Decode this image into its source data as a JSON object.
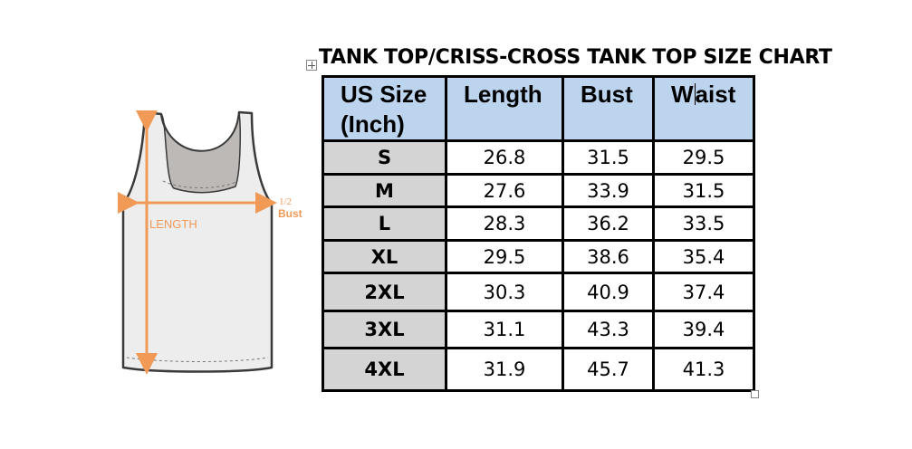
{
  "title": "TANK TOP/CRISS-CROSS TANK TOP SIZE CHART",
  "illustration": {
    "length_label": "LENGTH",
    "bust_fraction": "1/2",
    "bust_label": "Bust",
    "colors": {
      "measure": "#f19a58",
      "body": "#ededed",
      "inner": "#bdb9b7",
      "outline": "#3a3a3a"
    }
  },
  "table": {
    "headers": [
      "US Size\n(Inch)",
      "Length",
      "Bust",
      "Waist"
    ],
    "rows": [
      [
        "S",
        "26.8",
        "31.5",
        "29.5"
      ],
      [
        "M",
        "27.6",
        "33.9",
        "31.5"
      ],
      [
        "L",
        "28.3",
        "36.2",
        "33.5"
      ],
      [
        "XL",
        "29.5",
        "38.6",
        "35.4"
      ],
      [
        "2XL",
        "30.3",
        "40.9",
        "37.4"
      ],
      [
        "3XL",
        "31.1",
        "43.3",
        "39.4"
      ],
      [
        "4XL",
        "31.9",
        "45.7",
        "41.3"
      ]
    ],
    "colors": {
      "header_bg": "#bcd4ee",
      "size_bg": "#d4d4d4",
      "border": "#000000"
    }
  }
}
